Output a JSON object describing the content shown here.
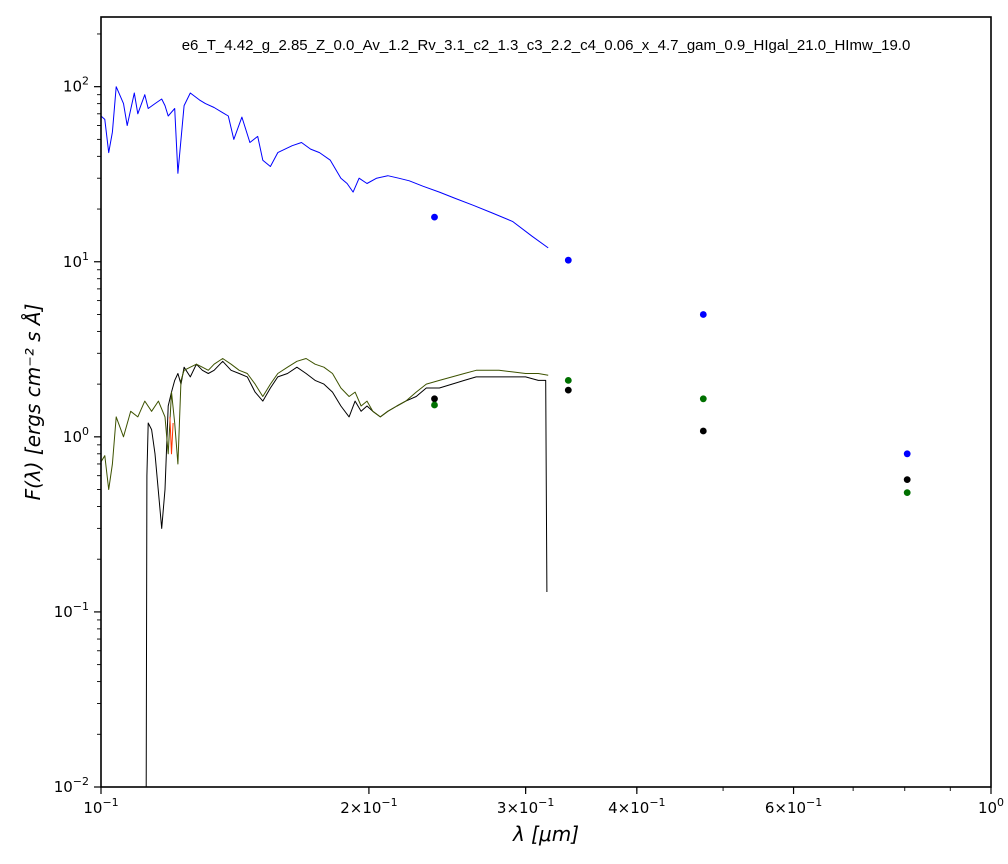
{
  "chart_data": {
    "type": "line",
    "title": "e6_T_4.42_g_2.85_Z_0.0_Av_1.2_Rv_3.1_c2_1.3_c3_2.2_c4_0.06_x_4.7_gam_0.9_HIgal_21.0_HImw_19.0",
    "xlabel": "λ [μm]",
    "ylabel": "F(λ) [ergs cm⁻² s Å]",
    "xscale": "log",
    "yscale": "log",
    "xlim": [
      0.1,
      1.0
    ],
    "ylim": [
      0.01,
      250
    ],
    "x_ticks": [
      {
        "value": 0.1,
        "base": "10",
        "exp": "−1",
        "coef": ""
      },
      {
        "value": 0.2,
        "base": "10",
        "exp": "−1",
        "coef": "2×"
      },
      {
        "value": 0.3,
        "base": "10",
        "exp": "−1",
        "coef": "3×"
      },
      {
        "value": 0.4,
        "base": "10",
        "exp": "−1",
        "coef": "4×"
      },
      {
        "value": 0.6,
        "base": "10",
        "exp": "−1",
        "coef": "6×"
      },
      {
        "value": 1.0,
        "base": "10",
        "exp": "0",
        "coef": ""
      }
    ],
    "y_ticks": [
      {
        "value": 0.01,
        "base": "10",
        "exp": "−2"
      },
      {
        "value": 0.1,
        "base": "10",
        "exp": "−1"
      },
      {
        "value": 1,
        "base": "10",
        "exp": "0"
      },
      {
        "value": 10,
        "base": "10",
        "exp": "1"
      },
      {
        "value": 100,
        "base": "10",
        "exp": "2"
      }
    ],
    "grid": false,
    "series": [
      {
        "color": "#0000ff",
        "kind": "line",
        "x": [
          0.1,
          0.101,
          0.102,
          0.103,
          0.104,
          0.106,
          0.107,
          0.109,
          0.11,
          0.112,
          0.113,
          0.115,
          0.117,
          0.118,
          0.119,
          0.121,
          0.122,
          0.124,
          0.126,
          0.129,
          0.131,
          0.134,
          0.137,
          0.139,
          0.141,
          0.144,
          0.147,
          0.15,
          0.152,
          0.155,
          0.158,
          0.161,
          0.164,
          0.168,
          0.172,
          0.176,
          0.181,
          0.186,
          0.189,
          0.192,
          0.195,
          0.199,
          0.204,
          0.21,
          0.216,
          0.222,
          0.23,
          0.24,
          0.25,
          0.262,
          0.275,
          0.29,
          0.305,
          0.318
        ],
        "y": [
          68,
          65,
          42,
          55,
          100,
          80,
          60,
          92,
          70,
          90,
          75,
          80,
          85,
          78,
          68,
          75,
          32,
          78,
          92,
          84,
          80,
          76,
          71,
          68,
          50,
          67,
          48,
          52,
          38,
          35,
          42,
          44,
          46,
          48,
          44,
          42,
          38,
          30,
          28,
          25,
          30,
          28,
          30,
          31,
          30,
          29,
          27,
          25,
          23,
          21,
          19,
          17,
          14,
          12
        ]
      },
      {
        "color": "#000000",
        "kind": "line",
        "x": [
          0.1124,
          0.1126,
          0.113,
          0.114,
          0.115,
          0.117,
          0.118,
          0.119,
          0.12,
          0.121,
          0.122,
          0.123,
          0.124,
          0.126,
          0.128,
          0.13,
          0.132,
          0.134,
          0.137,
          0.14,
          0.143,
          0.146,
          0.149,
          0.152,
          0.155,
          0.158,
          0.162,
          0.166,
          0.17,
          0.174,
          0.178,
          0.182,
          0.186,
          0.19,
          0.193,
          0.196,
          0.199,
          0.202,
          0.206,
          0.21,
          0.215,
          0.22,
          0.226,
          0.232,
          0.24,
          0.248,
          0.256,
          0.264,
          0.272,
          0.28,
          0.29,
          0.3,
          0.31,
          0.316,
          0.3165,
          0.317
        ],
        "y": [
          0.01,
          0.6,
          1.2,
          1.1,
          0.8,
          0.3,
          0.5,
          1.5,
          1.8,
          2.1,
          2.3,
          2.0,
          2.5,
          2.2,
          2.6,
          2.4,
          2.3,
          2.4,
          2.7,
          2.4,
          2.3,
          2.2,
          1.8,
          1.6,
          1.9,
          2.2,
          2.3,
          2.5,
          2.3,
          2.1,
          2.0,
          1.8,
          1.5,
          1.3,
          1.6,
          1.4,
          1.5,
          1.4,
          1.3,
          1.4,
          1.5,
          1.6,
          1.7,
          1.9,
          1.9,
          2.0,
          2.1,
          2.2,
          2.2,
          2.2,
          2.2,
          2.2,
          2.1,
          2.1,
          0.5,
          0.13
        ]
      },
      {
        "color": "#3d5200",
        "kind": "line",
        "x": [
          0.1,
          0.101,
          0.102,
          0.103,
          0.104,
          0.106,
          0.108,
          0.11,
          0.112,
          0.114,
          0.116,
          0.118,
          0.119,
          0.12,
          0.121,
          0.122,
          0.123,
          0.124,
          0.126,
          0.128,
          0.13,
          0.132,
          0.134,
          0.137,
          0.14,
          0.143,
          0.146,
          0.149,
          0.152,
          0.155,
          0.158,
          0.162,
          0.166,
          0.17,
          0.174,
          0.178,
          0.182,
          0.186,
          0.19,
          0.193,
          0.196,
          0.199,
          0.202,
          0.206,
          0.21,
          0.215,
          0.22,
          0.226,
          0.232,
          0.24,
          0.248,
          0.256,
          0.264,
          0.272,
          0.28,
          0.29,
          0.3,
          0.31,
          0.318
        ],
        "y": [
          0.72,
          0.78,
          0.5,
          0.7,
          1.3,
          1.0,
          1.4,
          1.3,
          1.6,
          1.4,
          1.6,
          1.3,
          0.8,
          1.8,
          1.2,
          0.7,
          2.1,
          2.4,
          2.5,
          2.6,
          2.5,
          2.4,
          2.6,
          2.8,
          2.6,
          2.4,
          2.3,
          2.0,
          1.7,
          2.0,
          2.3,
          2.5,
          2.7,
          2.8,
          2.6,
          2.5,
          2.3,
          1.9,
          1.7,
          1.8,
          1.5,
          1.6,
          1.4,
          1.3,
          1.4,
          1.5,
          1.6,
          1.8,
          2.0,
          2.1,
          2.2,
          2.3,
          2.4,
          2.4,
          2.4,
          2.35,
          2.3,
          2.3,
          2.25
        ]
      },
      {
        "color": "#ff3300",
        "kind": "line",
        "x": [
          0.1195,
          0.12,
          0.1205
        ],
        "y": [
          1.3,
          0.8,
          1.2
        ]
      },
      {
        "color": "#0000ff",
        "kind": "points",
        "x": [
          0.237,
          0.335,
          0.475,
          0.805
        ],
        "y": [
          18,
          10.2,
          5.0,
          0.8
        ]
      },
      {
        "color": "#000000",
        "kind": "points",
        "x": [
          0.237,
          0.335,
          0.475,
          0.805
        ],
        "y": [
          1.65,
          1.85,
          1.08,
          0.57
        ]
      },
      {
        "color": "#007000",
        "kind": "points",
        "x": [
          0.237,
          0.335,
          0.475,
          0.805
        ],
        "y": [
          1.52,
          2.1,
          1.65,
          0.48
        ]
      }
    ]
  }
}
